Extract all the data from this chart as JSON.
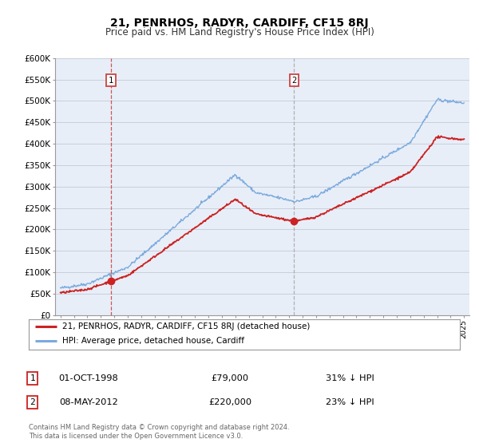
{
  "title": "21, PENRHOS, RADYR, CARDIFF, CF15 8RJ",
  "subtitle": "Price paid vs. HM Land Registry's House Price Index (HPI)",
  "background_color": "#ffffff",
  "plot_bg_color": "#e8eef8",
  "grid_color": "#c8d0dc",
  "hpi_color": "#7aaadd",
  "price_color": "#cc2222",
  "marker_color": "#cc2222",
  "marker1_x": 1998.75,
  "marker1_y": 79000,
  "marker2_x": 2012.37,
  "marker2_y": 220000,
  "vline1_x": 1998.75,
  "vline2_x": 2012.37,
  "vline1_color": "#cc4444",
  "vline2_color": "#aaaaaa",
  "ylim": [
    0,
    600000
  ],
  "xlim_start": 1994.6,
  "xlim_end": 2025.4,
  "legend_entry1": "21, PENRHOS, RADYR, CARDIFF, CF15 8RJ (detached house)",
  "legend_entry2": "HPI: Average price, detached house, Cardiff",
  "annotation1_date": "01-OCT-1998",
  "annotation1_price": "£79,000",
  "annotation1_hpi": "31% ↓ HPI",
  "annotation2_date": "08-MAY-2012",
  "annotation2_price": "£220,000",
  "annotation2_hpi": "23% ↓ HPI",
  "footer1": "Contains HM Land Registry data © Crown copyright and database right 2024.",
  "footer2": "This data is licensed under the Open Government Licence v3.0.",
  "yticks": [
    0,
    50000,
    100000,
    150000,
    200000,
    250000,
    300000,
    350000,
    400000,
    450000,
    500000,
    550000,
    600000
  ],
  "ytick_labels": [
    "£0",
    "£50K",
    "£100K",
    "£150K",
    "£200K",
    "£250K",
    "£300K",
    "£350K",
    "£400K",
    "£450K",
    "£500K",
    "£550K",
    "£600K"
  ]
}
